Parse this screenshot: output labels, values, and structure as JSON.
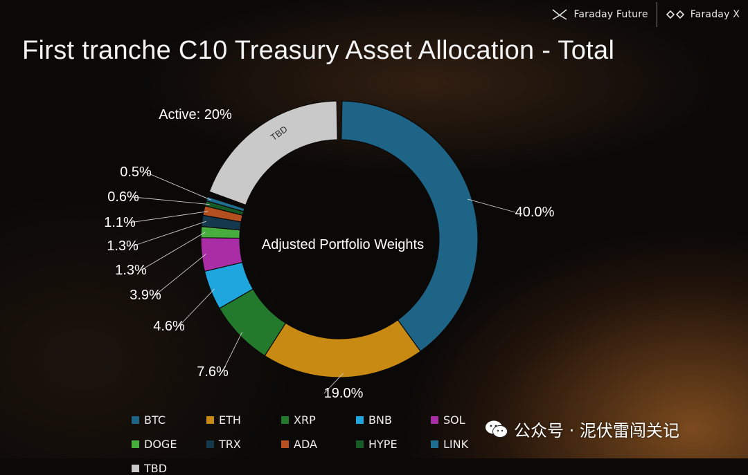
{
  "header": {
    "brands": [
      {
        "name": "Faraday Future",
        "icon": "ff-logo-icon"
      },
      {
        "name": "Faraday X",
        "icon": "ffx-logo-icon"
      }
    ]
  },
  "watermark": {
    "text": "公众号 · 泥伏雷闯关记",
    "icon": "wechat-icon"
  },
  "chart_data": {
    "type": "pie",
    "title": "First tranche C10 Treasury Asset Allocation - Total",
    "center_label": "Adjusted Portfolio Weights",
    "slices": [
      {
        "name": "BTC",
        "value": 40.0,
        "label": "40.0%",
        "color": "#1d6486"
      },
      {
        "name": "ETH",
        "value": 19.0,
        "label": "19.0%",
        "color": "#c88a12"
      },
      {
        "name": "XRP",
        "value": 7.6,
        "label": "7.6%",
        "color": "#237a2c"
      },
      {
        "name": "BNB",
        "value": 4.6,
        "label": "4.6%",
        "color": "#20a6de"
      },
      {
        "name": "SOL",
        "value": 3.9,
        "label": "3.9%",
        "color": "#a92ea5"
      },
      {
        "name": "DOGE",
        "value": 1.3,
        "label": "1.3%",
        "color": "#46ad3e"
      },
      {
        "name": "TRX",
        "value": 1.3,
        "label": "1.3%",
        "color": "#14384c"
      },
      {
        "name": "ADA",
        "value": 1.1,
        "label": "1.1%",
        "color": "#b4501f"
      },
      {
        "name": "HYPE",
        "value": 0.6,
        "label": "0.6%",
        "color": "#165a26"
      },
      {
        "name": "LINK",
        "value": 0.5,
        "label": "0.5%",
        "color": "#1f6d8f"
      },
      {
        "name": "TBD",
        "value": 20.0,
        "label": "Active: 20%",
        "color": "#c9c9c9",
        "inner_label": "TBD"
      }
    ],
    "legend": [
      "BTC",
      "ETH",
      "XRP",
      "BNB",
      "SOL",
      "DOGE",
      "TRX",
      "ADA",
      "HYPE",
      "LINK",
      "TBD"
    ]
  }
}
